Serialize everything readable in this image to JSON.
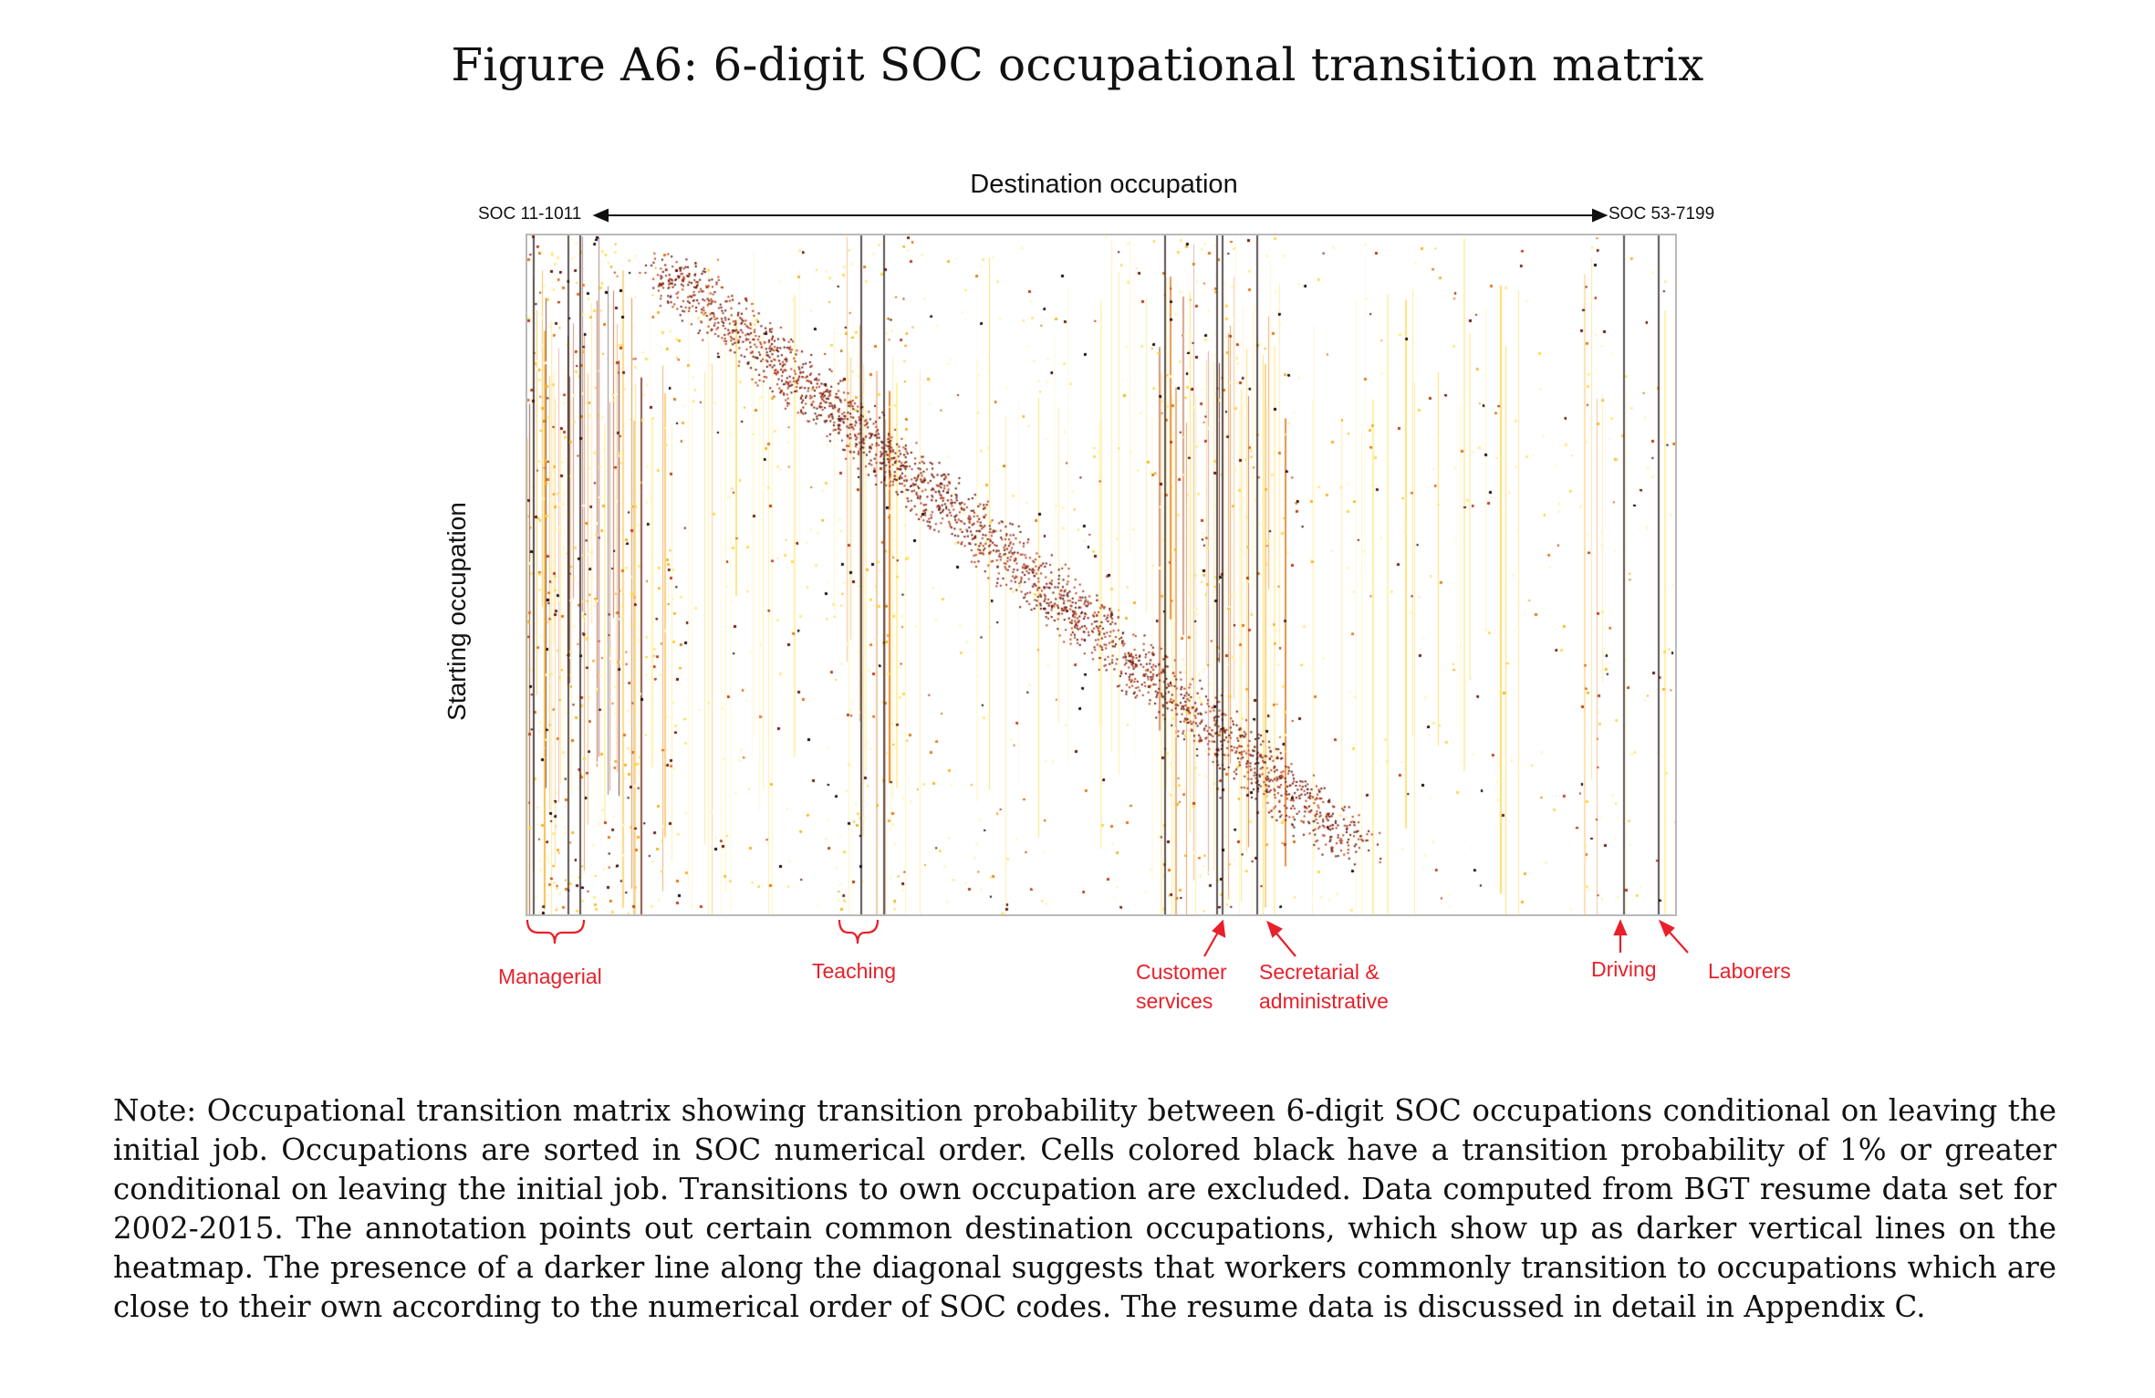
{
  "figure": {
    "title": "Figure A6: 6-digit SOC occupational transition matrix"
  },
  "heatmap": {
    "x_axis_label": "Destination occupation",
    "y_axis_label": "Starting occupation",
    "x_start_code": "SOC 11-1011",
    "x_end_code": "SOC 53-7199",
    "color_scale_note": "white-yellow-orange-red-black"
  },
  "annotations": {
    "managerial": "Managerial",
    "teaching": "Teaching",
    "customer_services_line1": "Customer",
    "customer_services_line2": "services",
    "secretarial_line1": "Secretarial &",
    "secretarial_line2": "administrative",
    "driving": "Driving",
    "laborers": "Laborers",
    "annotation_color": "#e8202a"
  },
  "note": {
    "text": "Note: Occupational transition matrix showing transition probability between 6-digit SOC occupations conditional on leaving the initial job. Occupations are sorted in SOC numerical order. Cells colored black have a transition probability of 1% or greater conditional on leaving the initial job. Transitions to own occupation are excluded. Data computed from BGT resume data set for 2002-2015. The annotation points out certain common destination occupations, which show up as darker vertical lines on the heatmap. The presence of a darker line along the diagonal suggests that workers commonly transition to occupations which are close to their own according to the numerical order of SOC codes. The resume data is discussed in detail in Appendix C."
  }
}
